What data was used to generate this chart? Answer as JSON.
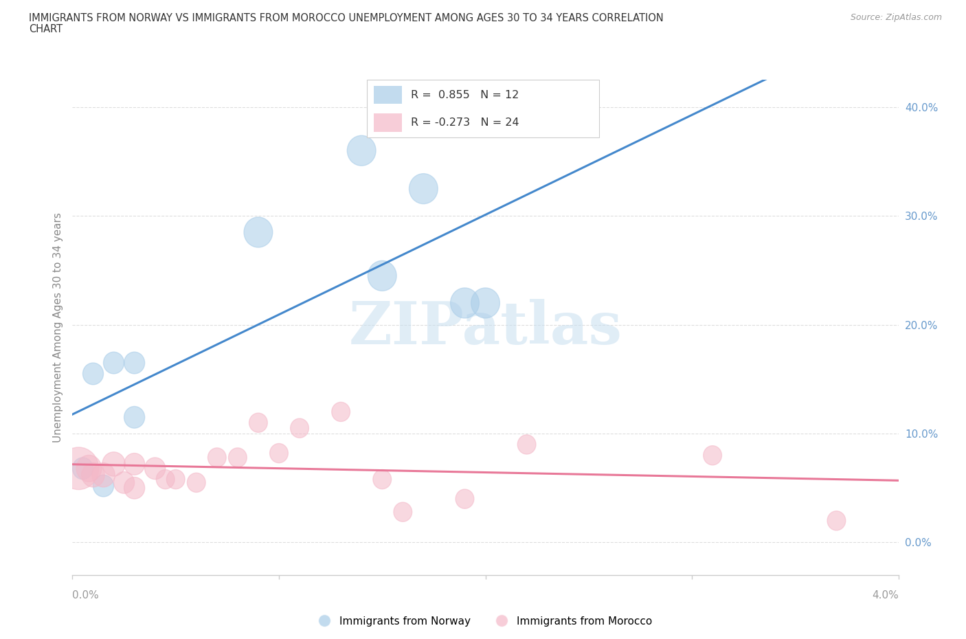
{
  "title_line1": "IMMIGRANTS FROM NORWAY VS IMMIGRANTS FROM MOROCCO UNEMPLOYMENT AMONG AGES 30 TO 34 YEARS CORRELATION",
  "title_line2": "CHART",
  "source": "Source: ZipAtlas.com",
  "ylabel": "Unemployment Among Ages 30 to 34 years",
  "norway_color": "#a8cce8",
  "norway_line_color": "#4488cc",
  "morocco_color": "#f4b8c8",
  "morocco_line_color": "#e87898",
  "norway_label": "Immigrants from Norway",
  "morocco_label": "Immigrants from Morocco",
  "norway_R": "0.855",
  "norway_N": "12",
  "morocco_R": "-0.273",
  "morocco_N": "24",
  "xlim": [
    0.0,
    0.04
  ],
  "ylim": [
    -0.03,
    0.425
  ],
  "yticks": [
    0.0,
    0.1,
    0.2,
    0.3,
    0.4
  ],
  "ytick_labels": [
    "0.0%",
    "10.0%",
    "20.0%",
    "30.0%",
    "40.0%"
  ],
  "xticks": [
    0.0,
    0.01,
    0.02,
    0.03,
    0.04
  ],
  "norway_x": [
    0.0005,
    0.001,
    0.0015,
    0.002,
    0.003,
    0.003,
    0.009,
    0.014,
    0.015,
    0.017,
    0.019,
    0.02
  ],
  "norway_y": [
    0.068,
    0.155,
    0.052,
    0.165,
    0.165,
    0.115,
    0.285,
    0.36,
    0.245,
    0.325,
    0.22,
    0.22
  ],
  "norway_sizes": [
    180,
    180,
    180,
    180,
    180,
    180,
    250,
    250,
    250,
    250,
    250,
    250
  ],
  "morocco_x": [
    0.0003,
    0.0008,
    0.001,
    0.0015,
    0.002,
    0.0025,
    0.003,
    0.003,
    0.004,
    0.0045,
    0.005,
    0.006,
    0.007,
    0.008,
    0.009,
    0.01,
    0.011,
    0.013,
    0.015,
    0.016,
    0.019,
    0.022,
    0.031,
    0.037
  ],
  "morocco_y": [
    0.068,
    0.068,
    0.062,
    0.062,
    0.072,
    0.055,
    0.072,
    0.05,
    0.068,
    0.058,
    0.058,
    0.055,
    0.078,
    0.078,
    0.11,
    0.082,
    0.105,
    0.12,
    0.058,
    0.028,
    0.04,
    0.09,
    0.08,
    0.02
  ],
  "morocco_sizes": [
    350,
    220,
    200,
    200,
    200,
    180,
    180,
    180,
    180,
    160,
    160,
    160,
    160,
    160,
    160,
    160,
    160,
    160,
    160,
    160,
    160,
    160,
    160,
    160
  ],
  "watermark_text": "ZIPatlas",
  "background_color": "#ffffff",
  "grid_color": "#dddddd",
  "legend_box_color": "#ffffff",
  "legend_border_color": "#cccccc",
  "title_color": "#333333",
  "ylabel_color": "#888888",
  "ytick_color": "#6699cc",
  "xtick_color": "#999999",
  "source_color": "#999999"
}
